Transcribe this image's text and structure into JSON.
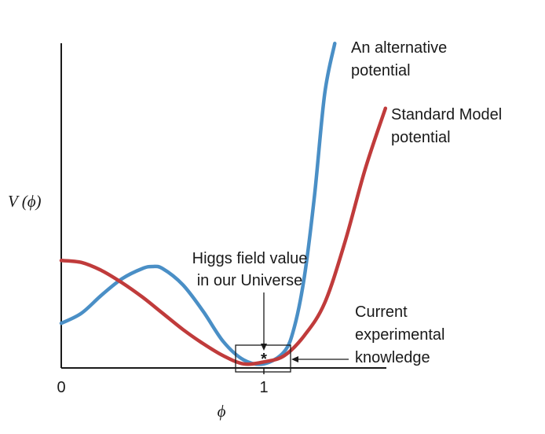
{
  "chart_data": {
    "type": "line",
    "title": "",
    "xlabel": "ϕ",
    "ylabel": "V (ϕ)",
    "x_ticks": [
      "0",
      "1"
    ],
    "xlim": [
      0,
      1.6
    ],
    "ylim": [
      0,
      1.6
    ],
    "grid": false,
    "series": [
      {
        "name_lines": [
          "An alternative",
          "potential"
        ],
        "color": "#4a8fc6",
        "x": [
          0,
          0.1,
          0.2,
          0.3,
          0.4,
          0.45,
          0.5,
          0.6,
          0.7,
          0.8,
          0.9,
          1.0,
          1.1,
          1.15,
          1.2,
          1.25,
          1.3,
          1.35
        ],
        "y": [
          0.22,
          0.27,
          0.36,
          0.44,
          0.49,
          0.5,
          0.49,
          0.41,
          0.28,
          0.13,
          0.04,
          0.02,
          0.08,
          0.2,
          0.45,
          0.85,
          1.35,
          1.6
        ]
      },
      {
        "name_lines": [
          "Standard Model",
          "potential"
        ],
        "color": "#c03b3b",
        "x": [
          0,
          0.1,
          0.2,
          0.3,
          0.4,
          0.5,
          0.6,
          0.7,
          0.8,
          0.9,
          1.0,
          1.1,
          1.2,
          1.3,
          1.4,
          1.5,
          1.6
        ],
        "y": [
          0.53,
          0.52,
          0.48,
          0.42,
          0.35,
          0.27,
          0.19,
          0.12,
          0.06,
          0.02,
          0.03,
          0.06,
          0.16,
          0.32,
          0.62,
          0.98,
          1.28
        ]
      }
    ],
    "annotations": [
      {
        "id": "higgs",
        "text_lines": [
          "Higgs field value",
          "in our Universe"
        ],
        "marker": "*",
        "x": 1.0,
        "y": 0.03
      },
      {
        "id": "experimental",
        "text_lines": [
          "Current",
          "experimental",
          "knowledge"
        ],
        "box_x": [
          0.87,
          1.14
        ],
        "box_y": [
          0.0,
          0.11
        ]
      }
    ]
  }
}
